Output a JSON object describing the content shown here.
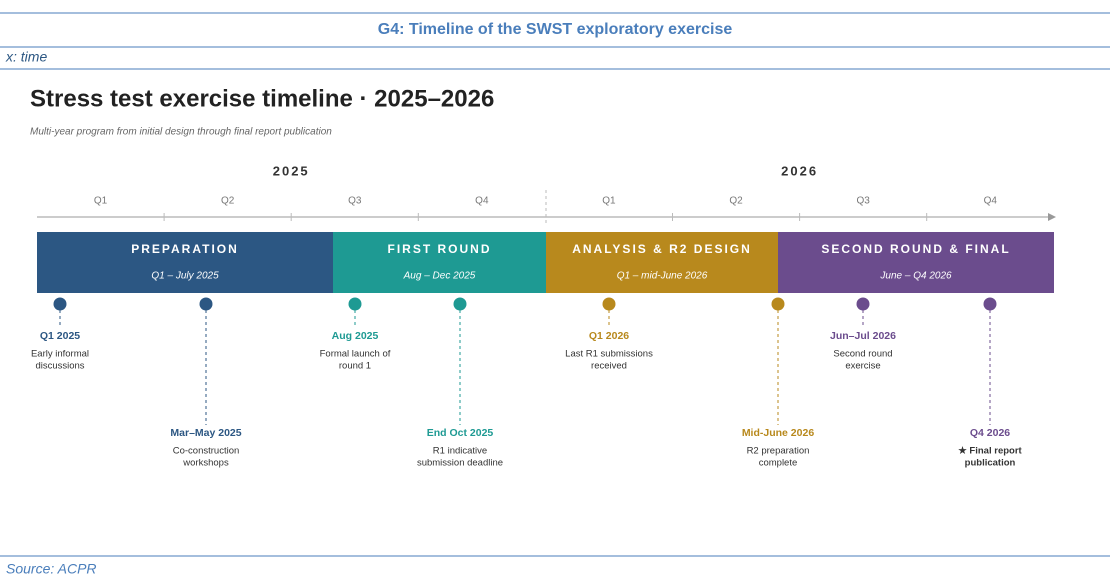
{
  "header": {
    "title": "G4: Timeline of the SWST exploratory exercise",
    "axis_note": "x: time",
    "source": "Source: ACPR"
  },
  "diagram": {
    "title": "Stress test exercise timeline · 2025–2026",
    "subtitle": "Multi-year program from initial design through final report publication",
    "years": [
      "2025",
      "2026"
    ],
    "quarters": [
      "Q1",
      "Q2",
      "Q3",
      "Q4",
      "Q1",
      "Q2",
      "Q3",
      "Q4"
    ],
    "phases": [
      {
        "name": "PREPARATION",
        "period": "Q1 – July 2025",
        "color": "#2c5783"
      },
      {
        "name": "FIRST ROUND",
        "period": "Aug – Dec 2025",
        "color": "#1e9a93"
      },
      {
        "name": "ANALYSIS & R2 DESIGN",
        "period": "Q1 – mid-June 2026",
        "color": "#b8891d"
      },
      {
        "name": "SECOND ROUND & FINAL",
        "period": "June – Q4 2026",
        "color": "#6b4c8d"
      }
    ],
    "milestones": [
      {
        "date": "Q1 2025",
        "text": [
          "Early informal",
          "discussions"
        ],
        "color": "#2c5783"
      },
      {
        "date": "Mar–May 2025",
        "text": [
          "Co-construction",
          "workshops"
        ],
        "color": "#2c5783"
      },
      {
        "date": "Aug 2025",
        "text": [
          "Formal launch of",
          "round 1"
        ],
        "color": "#1e9a93"
      },
      {
        "date": "End Oct 2025",
        "text": [
          "R1 indicative",
          "submission deadline"
        ],
        "color": "#1e9a93"
      },
      {
        "date": "Q1 2026",
        "text": [
          "Last R1 submissions",
          "received"
        ],
        "color": "#b8891d"
      },
      {
        "date": "Mid-June 2026",
        "text": [
          "R2 preparation",
          "complete"
        ],
        "color": "#b8891d"
      },
      {
        "date": "Jun–Jul 2026",
        "text": [
          "Second round",
          "exercise"
        ],
        "color": "#6b4c8d"
      },
      {
        "date": "Q4 2026",
        "text": [
          "★ Final report",
          "publication"
        ],
        "color": "#6b4c8d"
      }
    ]
  }
}
